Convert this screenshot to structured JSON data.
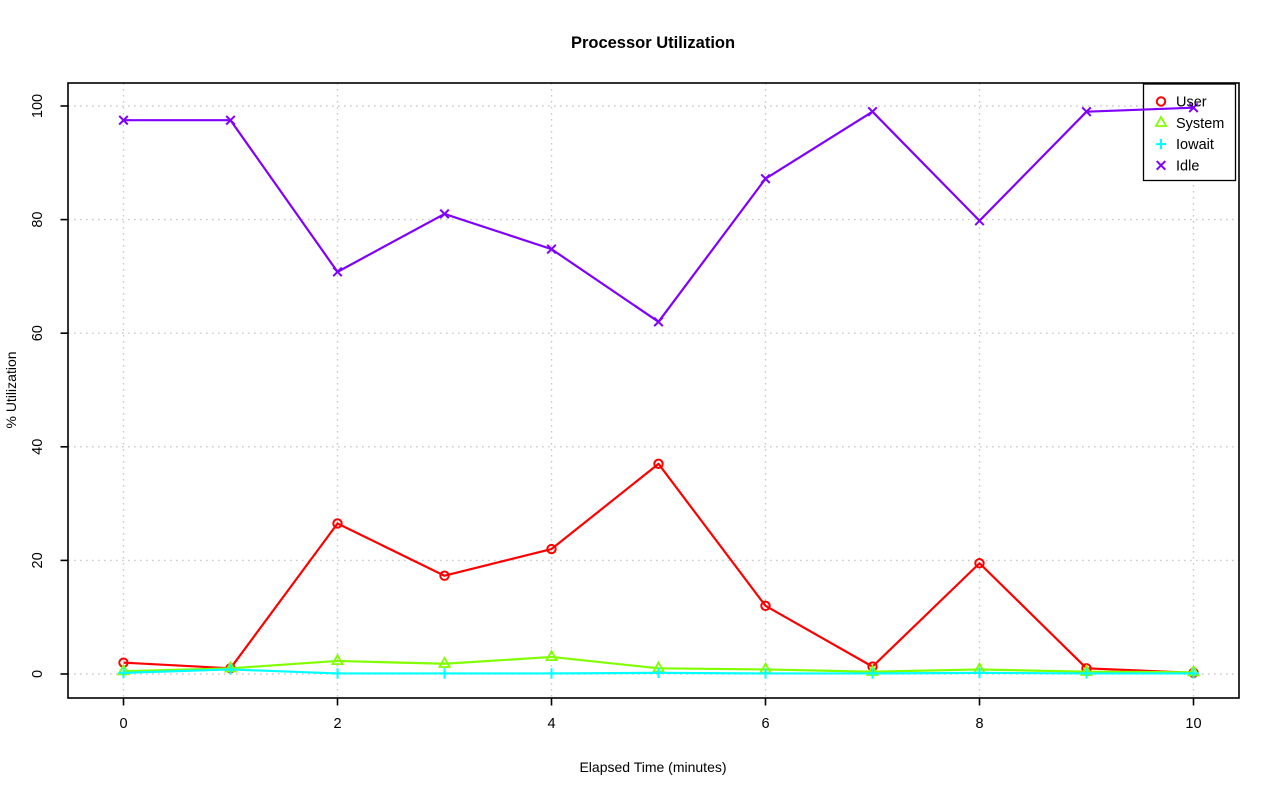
{
  "page": {
    "background_color": "#FFFFFF",
    "text_color": "#000000"
  },
  "chart_data": {
    "type": "line",
    "title": "Processor Utilization",
    "xlabel": "Elapsed Time (minutes)",
    "ylabel": "% Utilization",
    "xlim": [
      0,
      10
    ],
    "ylim": [
      0,
      100
    ],
    "xticks": [
      0,
      2,
      4,
      6,
      8,
      10
    ],
    "yticks": [
      0,
      20,
      40,
      60,
      80,
      100
    ],
    "grid": {
      "on": true,
      "style": "dotted",
      "color": "#C9C9C9"
    },
    "x": [
      0,
      1,
      2,
      3,
      4,
      5,
      6,
      7,
      8,
      9,
      10
    ],
    "series": [
      {
        "name": "User",
        "color": "#FF0000",
        "marker": "circle",
        "values": [
          2,
          1,
          26.5,
          17.3,
          22,
          37,
          12,
          1.3,
          19.5,
          1,
          0.2
        ]
      },
      {
        "name": "System",
        "color": "#80FF00",
        "marker": "triangle",
        "values": [
          0.5,
          1,
          2.3,
          1.8,
          3,
          1,
          0.8,
          0.4,
          0.8,
          0.4,
          0.3
        ]
      },
      {
        "name": "Iowait",
        "color": "#00FFFF",
        "marker": "plus",
        "values": [
          0.2,
          0.8,
          0.1,
          0.1,
          0.1,
          0.2,
          0.1,
          0.1,
          0.2,
          0.1,
          0.1
        ]
      },
      {
        "name": "Idle",
        "color": "#8000FF",
        "marker": "x",
        "values": [
          97.5,
          97.5,
          70.8,
          81,
          74.8,
          62,
          87.2,
          99,
          79.8,
          99,
          99.7
        ]
      }
    ],
    "legend": {
      "position": "topright",
      "border": true,
      "items": [
        "User",
        "System",
        "Iowait",
        "Idle"
      ]
    }
  }
}
